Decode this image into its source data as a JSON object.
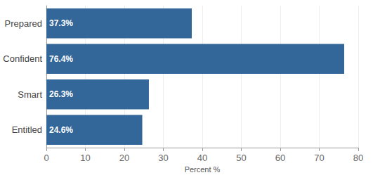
{
  "chart_data": {
    "type": "bar",
    "orientation": "horizontal",
    "categories": [
      "Prepared",
      "Confident",
      "Smart",
      "Entitled"
    ],
    "values": [
      37.3,
      76.4,
      26.3,
      24.6
    ],
    "value_labels": [
      "37.3%",
      "76.4%",
      "26.3%",
      "24.6%"
    ],
    "data_labels": true,
    "color": "#336699",
    "x_label": "Percent %",
    "xlim": [
      0,
      80
    ],
    "xticks": [
      0,
      10,
      20,
      30,
      40,
      50,
      60,
      70,
      80
    ],
    "grid": true
  }
}
